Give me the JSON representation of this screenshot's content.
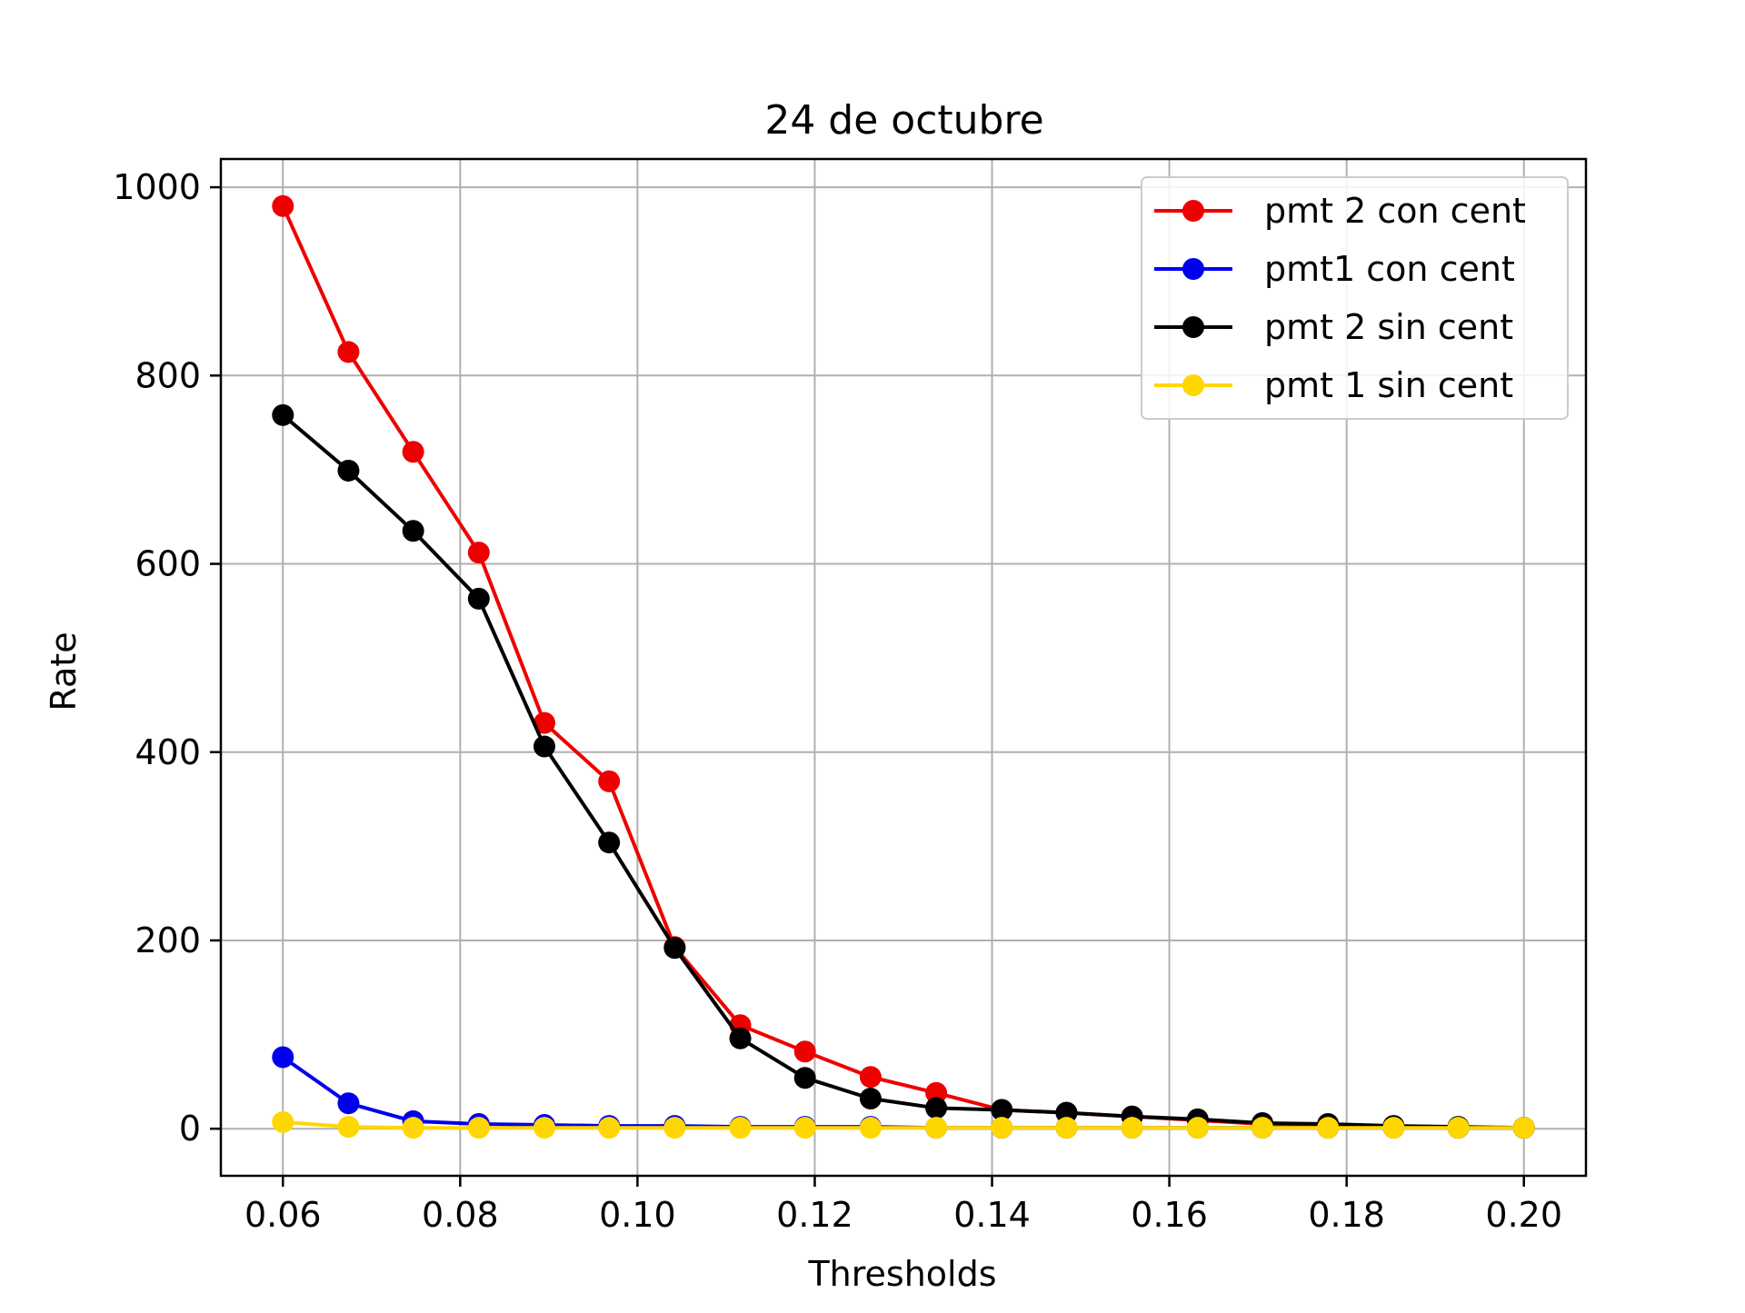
{
  "chart_data": {
    "type": "line",
    "title": "24 de octubre",
    "xlabel": "Thresholds",
    "ylabel": "Rate",
    "xlim": [
      0.053,
      0.207
    ],
    "ylim": [
      -50,
      1030
    ],
    "xticks": [
      0.06,
      0.08,
      0.1,
      0.12,
      0.14,
      0.16,
      0.18,
      0.2
    ],
    "xtick_labels": [
      "0.06",
      "0.08",
      "0.10",
      "0.12",
      "0.14",
      "0.16",
      "0.18",
      "0.20"
    ],
    "yticks": [
      0,
      200,
      400,
      600,
      800,
      1000
    ],
    "ytick_labels": [
      "0",
      "200",
      "400",
      "600",
      "800",
      "1000"
    ],
    "grid": true,
    "legend_position": "top-right",
    "x": [
      0.06,
      0.0674,
      0.0747,
      0.0821,
      0.0895,
      0.0968,
      0.1042,
      0.1116,
      0.1189,
      0.1263,
      0.1337,
      0.1411,
      0.1484,
      0.1558,
      0.1632,
      0.1705,
      0.1779,
      0.1853,
      0.1926,
      0.2
    ],
    "series": [
      {
        "name": "pmt 2 con cent",
        "color": "#ee0000",
        "values": [
          980,
          825,
          719,
          612,
          431,
          369,
          193,
          110,
          82,
          55,
          38,
          20,
          17,
          13,
          9,
          5,
          3,
          2,
          1,
          1
        ]
      },
      {
        "name": "pmt1 con cent",
        "color": "#0000ee",
        "values": [
          76,
          27,
          8,
          5,
          4,
          3,
          3,
          2,
          2,
          2,
          1,
          1,
          1,
          1,
          1,
          1,
          1,
          1,
          1,
          1
        ]
      },
      {
        "name": "pmt 2 sin cent",
        "color": "#000000",
        "values": [
          758,
          699,
          635,
          563,
          406,
          304,
          192,
          96,
          54,
          32,
          22,
          20,
          17,
          13,
          10,
          6,
          5,
          3,
          2,
          1
        ]
      },
      {
        "name": "pmt 1 sin cent",
        "color": "#ffd700",
        "values": [
          7,
          2,
          1,
          1,
          1,
          1,
          1,
          1,
          1,
          1,
          1,
          1,
          1,
          1,
          1,
          1,
          1,
          1,
          1,
          1
        ]
      }
    ]
  }
}
